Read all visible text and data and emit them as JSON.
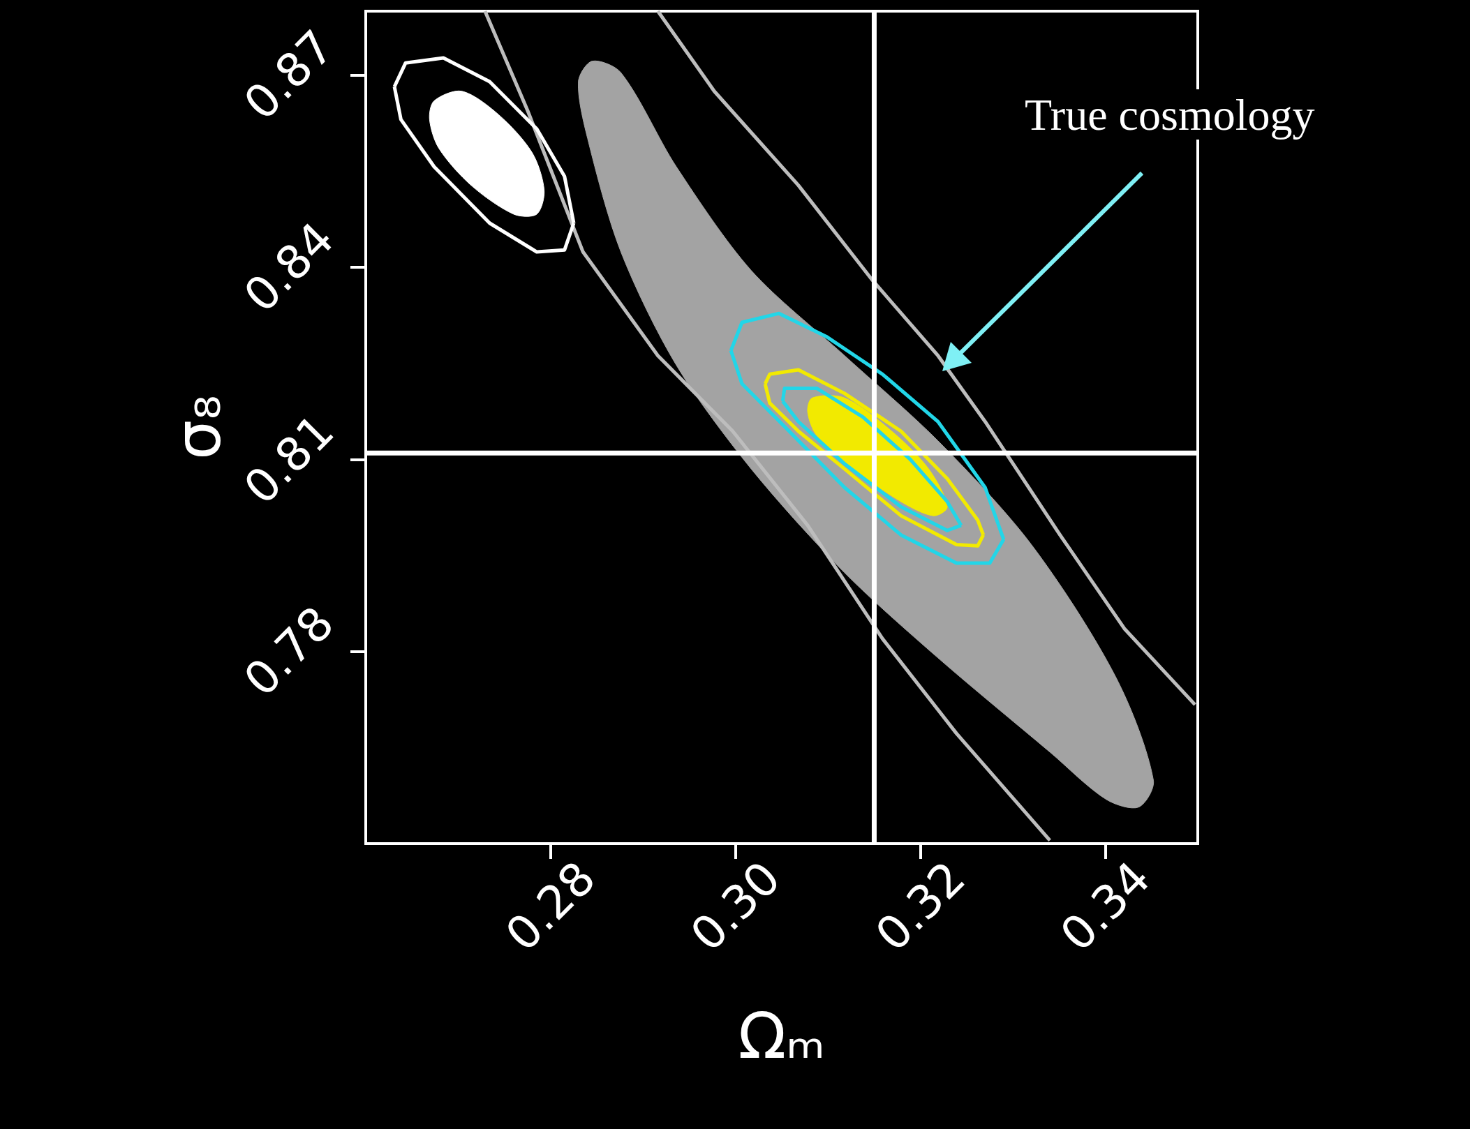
{
  "chart_data": {
    "type": "line",
    "xlabel": "Ωₘ",
    "ylabel": "σ₈",
    "xlim": [
      0.26,
      0.35
    ],
    "xticks": [
      0.28,
      {
        "value": 0.3,
        "label": "0.30"
      },
      0.32,
      0.34
    ],
    "ylim": [
      0.75,
      0.88
    ],
    "yticks": [
      0.78,
      0.81,
      0.84,
      0.87
    ],
    "ref_lines": [
      {
        "axis": "x",
        "value": 0.315,
        "color": "#ffffff"
      },
      {
        "axis": "y",
        "value": 0.811,
        "color": "#ffffff"
      }
    ],
    "annotations": [
      "True cosmology"
    ],
    "series": [
      {
        "type": "area",
        "color": "#a3a3a3",
        "x": [
          0.2845,
          0.2876,
          0.2936,
          0.3017,
          0.3118,
          0.3219,
          0.332,
          0.3411,
          0.3452,
          0.3436,
          0.3401,
          0.334,
          0.3219,
          0.3118,
          0.3017,
          0.2936,
          0.2876,
          0.284,
          0.283
        ],
        "values": [
          0.8722,
          0.8704,
          0.8557,
          0.8395,
          0.8262,
          0.8129,
          0.7967,
          0.7761,
          0.7599,
          0.7557,
          0.7569,
          0.7643,
          0.779,
          0.7923,
          0.8085,
          0.8247,
          0.8424,
          0.8601,
          0.869
        ]
      },
      {
        "color": "#bdbdbd",
        "x": [
          0.2729,
          0.2775,
          0.2835,
          0.2916,
          0.2997,
          0.3078,
          0.3159,
          0.3239,
          0.334
        ],
        "values": [
          0.88,
          0.8645,
          0.8424,
          0.8262,
          0.8144,
          0.7997,
          0.782,
          0.7672,
          0.7505
        ]
      },
      {
        "color": "#bdbdbd",
        "x": [
          0.2916,
          0.2977,
          0.3068,
          0.3148,
          0.3219,
          0.327,
          0.3351,
          0.3421,
          0.3497
        ],
        "values": [
          0.88,
          0.8675,
          0.8528,
          0.838,
          0.8262,
          0.8159,
          0.7982,
          0.7835,
          0.7717
        ]
      },
      {
        "color": "#ffffff",
        "x": [
          0.2631,
          0.2643,
          0.2684,
          0.2734,
          0.2785,
          0.2815,
          0.2825
        ],
        "values": [
          0.8682,
          0.8719,
          0.8727,
          0.869,
          0.8616,
          0.8542,
          0.8469
        ]
      },
      {
        "color": "#ffffff",
        "x": [
          0.2631,
          0.2638,
          0.2674,
          0.2734,
          0.2785,
          0.2815,
          0.2825
        ],
        "values": [
          0.8682,
          0.8631,
          0.8557,
          0.8469,
          0.8424,
          0.8427,
          0.8469
        ]
      },
      {
        "type": "area",
        "color": "#ffffff",
        "x": [
          0.2674,
          0.2704,
          0.2744,
          0.278,
          0.2793,
          0.2785,
          0.276,
          0.2714,
          0.2679,
          0.2669
        ],
        "values": [
          0.866,
          0.8675,
          0.8638,
          0.8579,
          0.852,
          0.8483,
          0.8483,
          0.8528,
          0.8586,
          0.8631
        ]
      },
      {
        "color": "#22d6e8",
        "x": [
          0.2995,
          0.3007,
          0.3047,
          0.3098,
          0.3159,
          0.3219,
          0.327,
          0.329
        ],
        "values": [
          0.827,
          0.8314,
          0.8328,
          0.8292,
          0.8233,
          0.8159,
          0.8056,
          0.7975
        ]
      },
      {
        "color": "#22d6e8",
        "x": [
          0.2995,
          0.3007,
          0.3058,
          0.3118,
          0.3179,
          0.3239,
          0.3275,
          0.329
        ],
        "values": [
          0.827,
          0.8218,
          0.8144,
          0.8056,
          0.7982,
          0.7938,
          0.7938,
          0.7975
        ]
      },
      {
        "color": "#f2ea00",
        "x": [
          0.3032,
          0.3037,
          0.3068,
          0.3118,
          0.3179,
          0.3229,
          0.3262,
          0.3268
        ],
        "values": [
          0.8218,
          0.8233,
          0.824,
          0.8203,
          0.8144,
          0.807,
          0.8005,
          0.7982
        ]
      },
      {
        "color": "#f2ea00",
        "x": [
          0.3032,
          0.3037,
          0.3068,
          0.3118,
          0.3179,
          0.3239,
          0.3262,
          0.3268
        ],
        "values": [
          0.8218,
          0.8188,
          0.8144,
          0.8085,
          0.8012,
          0.7967,
          0.7965,
          0.7982
        ]
      },
      {
        "color": "#22d6e8",
        "x": [
          0.3051,
          0.3053,
          0.3088,
          0.3138,
          0.3189,
          0.3229,
          0.3244
        ],
        "values": [
          0.8191,
          0.8211,
          0.8211,
          0.8166,
          0.81,
          0.8034,
          0.7997
        ]
      },
      {
        "color": "#22d6e8",
        "x": [
          0.3051,
          0.3068,
          0.3118,
          0.3179,
          0.3229,
          0.3244
        ],
        "values": [
          0.8191,
          0.8159,
          0.8093,
          0.8026,
          0.7989,
          0.7997
        ]
      },
      {
        "type": "area",
        "color": "#f2ea00",
        "x": [
          0.3083,
          0.3118,
          0.3169,
          0.3209,
          0.3229,
          0.3214,
          0.3179,
          0.3128,
          0.3088,
          0.3078
        ],
        "values": [
          0.8196,
          0.8196,
          0.8144,
          0.8085,
          0.8026,
          0.8012,
          0.8034,
          0.8085,
          0.8137,
          0.8174
        ]
      }
    ]
  }
}
